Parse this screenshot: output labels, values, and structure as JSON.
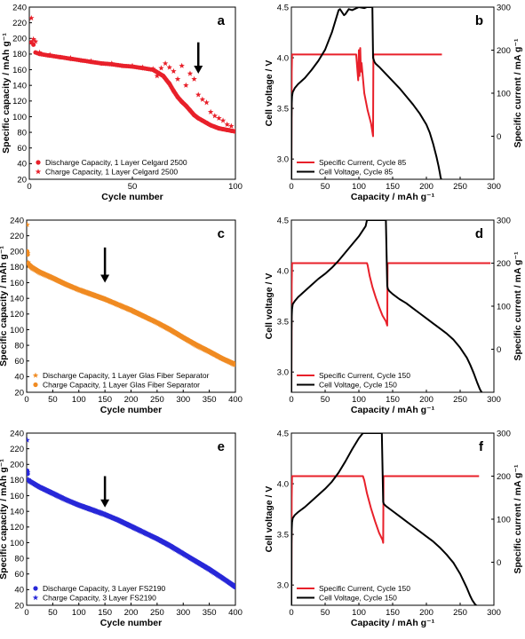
{
  "chart_data": [
    {
      "panel": "a",
      "type": "scatter",
      "xlabel": "Cycle number",
      "ylabel": "Specific capacity / mAh g⁻¹",
      "xlim": [
        0,
        100
      ],
      "ylim": [
        20,
        240
      ],
      "xticks": [
        0,
        50,
        100
      ],
      "yticks": [
        20,
        40,
        60,
        80,
        100,
        120,
        140,
        160,
        180,
        200,
        220,
        240
      ],
      "colors": {
        "discharge": "#e8202a",
        "charge": "#e8202a"
      },
      "legend_position": "bottom-left",
      "series": [
        {
          "name": "Discharge Capacity, 1 Layer Celgard 2500",
          "marker": "circle",
          "x": [
            1,
            2,
            3,
            4,
            5,
            10,
            15,
            20,
            25,
            30,
            35,
            40,
            45,
            50,
            55,
            60,
            65,
            68,
            70,
            72,
            74,
            76,
            78,
            80,
            82,
            84,
            86,
            88,
            90,
            92,
            94,
            96,
            98,
            100
          ],
          "y": [
            195,
            192,
            182,
            181,
            180,
            178,
            176,
            174,
            172,
            170,
            168,
            167,
            165,
            164,
            162,
            160,
            152,
            142,
            133,
            125,
            119,
            114,
            108,
            102,
            98,
            95,
            92,
            89,
            87,
            85,
            84,
            83,
            82,
            81
          ]
        },
        {
          "name": "Charge Capacity, 1 Layer Celgard 2500",
          "marker": "star",
          "x": [
            1,
            2,
            3,
            5,
            10,
            20,
            30,
            40,
            50,
            55,
            60,
            62,
            64,
            66,
            68,
            70,
            72,
            74,
            76,
            78,
            80,
            82,
            84,
            86,
            88,
            90,
            92,
            94,
            96,
            98,
            100
          ],
          "y": [
            226,
            199,
            196,
            182,
            179,
            175,
            171,
            168,
            165,
            163,
            161,
            152,
            162,
            168,
            163,
            158,
            148,
            165,
            140,
            155,
            148,
            128,
            122,
            118,
            106,
            101,
            98,
            95,
            90,
            88,
            82
          ]
        }
      ]
    },
    {
      "panel": "b",
      "type": "line",
      "xlabel": "Capacity / mAh g⁻¹",
      "ylabel": "Cell voltage / V",
      "y2label": "Specific current / mA g⁻¹",
      "xlim": [
        0,
        300
      ],
      "ylim": [
        2.8,
        4.5
      ],
      "y2lim": [
        -100,
        300
      ],
      "xticks": [
        0,
        50,
        100,
        150,
        200,
        250,
        300
      ],
      "yticks": [
        3.0,
        3.5,
        4.0,
        4.5
      ],
      "y2ticks": [
        0,
        100,
        200,
        300
      ],
      "legend_position": "bottom-left",
      "series": [
        {
          "name": "Specific Current, Cycle 85",
          "axis": "right",
          "color": "#e8202a",
          "x": [
            0,
            0.5,
            1,
            20,
            60,
            96,
            98,
            99,
            100,
            101,
            102,
            103,
            104,
            108,
            113,
            118,
            120,
            121,
            121.5,
            125,
            200,
            223
          ],
          "y": [
            -100,
            150,
            190,
            190,
            190,
            190,
            150,
            130,
            200,
            140,
            205,
            150,
            170,
            100,
            60,
            30,
            10,
            0,
            190,
            190,
            190,
            190
          ]
        },
        {
          "name": "Cell Voltage, Cycle 85",
          "axis": "left",
          "color": "#000000",
          "x": [
            0,
            0.2,
            0.5,
            1,
            2,
            5,
            10,
            20,
            30,
            40,
            50,
            60,
            70,
            72,
            75,
            78,
            80,
            85,
            90,
            100,
            108,
            112,
            116,
            120,
            121,
            122,
            123,
            125,
            130,
            140,
            150,
            160,
            170,
            180,
            190,
            200,
            205,
            210,
            215,
            218,
            220,
            221,
            222
          ],
          "y": [
            2.8,
            3.4,
            3.55,
            3.62,
            3.66,
            3.7,
            3.74,
            3.8,
            3.88,
            3.97,
            4.08,
            4.25,
            4.47,
            4.48,
            4.45,
            4.42,
            4.43,
            4.48,
            4.47,
            4.5,
            4.49,
            4.5,
            4.5,
            4.5,
            4.0,
            3.98,
            3.96,
            3.94,
            3.91,
            3.84,
            3.77,
            3.7,
            3.62,
            3.54,
            3.45,
            3.34,
            3.26,
            3.15,
            3.02,
            2.93,
            2.86,
            2.82,
            2.8
          ]
        }
      ]
    },
    {
      "panel": "c",
      "type": "scatter",
      "xlabel": "Cycle number",
      "ylabel": "Specific capacity / mAh g⁻¹",
      "xlim": [
        0,
        400
      ],
      "ylim": [
        20,
        240
      ],
      "xticks": [
        0,
        50,
        100,
        150,
        200,
        250,
        300,
        350,
        400
      ],
      "yticks": [
        20,
        40,
        60,
        80,
        100,
        120,
        140,
        160,
        180,
        200,
        220,
        240
      ],
      "colors": {
        "discharge": "#f08b22",
        "charge": "#f08b22"
      },
      "legend_position": "bottom-left",
      "series": [
        {
          "name": "Discharge Capacity, 1 Layer Glas Fiber Separator",
          "marker": "star",
          "x": [
            1,
            2,
            3,
            5,
            10,
            25,
            50,
            75,
            100,
            125,
            150,
            175,
            200,
            225,
            250,
            275,
            300,
            325,
            350,
            375,
            400
          ],
          "y": [
            234,
            198,
            186,
            182,
            179,
            173,
            166,
            158,
            151,
            145,
            139,
            132,
            125,
            117,
            109,
            100,
            90,
            80,
            72,
            63,
            55
          ]
        },
        {
          "name": "Charge Capacity, 1 Layer Glas Fiber Separator",
          "marker": "circle",
          "x": [
            1,
            2,
            3,
            5,
            10,
            25,
            50,
            75,
            100,
            125,
            150,
            175,
            200,
            225,
            250,
            275,
            300,
            325,
            350,
            375,
            400
          ],
          "y": [
            200,
            196,
            185,
            183,
            180,
            174,
            166,
            158,
            151,
            145,
            139,
            132,
            125,
            117,
            109,
            100,
            90,
            81,
            72,
            63,
            56
          ]
        }
      ]
    },
    {
      "panel": "d",
      "type": "line",
      "xlabel": "Capacity / mAh g⁻¹",
      "ylabel": "Cell voltage / V",
      "y2label": "Specific current / mA g⁻¹",
      "xlim": [
        0,
        300
      ],
      "ylim": [
        2.8,
        4.5
      ],
      "y2lim": [
        -100,
        300
      ],
      "xticks": [
        0,
        50,
        100,
        150,
        200,
        250,
        300
      ],
      "yticks": [
        3.0,
        3.5,
        4.0,
        4.5
      ],
      "y2ticks": [
        0,
        100,
        200,
        300
      ],
      "legend_position": "bottom-left",
      "series": [
        {
          "name": "Specific Current, Cycle 150",
          "axis": "right",
          "color": "#e8202a",
          "x": [
            0,
            0.5,
            1,
            50,
            100,
            112,
            113,
            116,
            120,
            125,
            130,
            135,
            140,
            142,
            142.5,
            145,
            200,
            250,
            295
          ],
          "y": [
            -100,
            150,
            200,
            200,
            200,
            200,
            195,
            170,
            145,
            120,
            98,
            78,
            65,
            55,
            200,
            200,
            200,
            200,
            200
          ]
        },
        {
          "name": "Cell Voltage, Cycle 150",
          "axis": "left",
          "color": "#000000",
          "x": [
            0,
            0.2,
            0.5,
            1,
            2,
            5,
            10,
            20,
            30,
            40,
            50,
            60,
            70,
            80,
            90,
            100,
            110,
            112,
            125,
            140,
            142,
            143,
            145,
            150,
            160,
            170,
            180,
            190,
            200,
            210,
            220,
            230,
            240,
            250,
            260,
            265,
            270,
            275,
            278,
            280,
            282
          ],
          "y": [
            2.8,
            3.4,
            3.55,
            3.62,
            3.67,
            3.7,
            3.74,
            3.8,
            3.86,
            3.92,
            3.97,
            4.03,
            4.1,
            4.18,
            4.26,
            4.34,
            4.44,
            4.5,
            4.5,
            4.5,
            3.85,
            3.82,
            3.8,
            3.77,
            3.72,
            3.68,
            3.63,
            3.58,
            3.53,
            3.48,
            3.43,
            3.38,
            3.32,
            3.24,
            3.14,
            3.07,
            2.99,
            2.9,
            2.85,
            2.82,
            2.8
          ]
        }
      ]
    },
    {
      "panel": "e",
      "type": "scatter",
      "xlabel": "Cycle number",
      "ylabel": "Specific capacity / mAh g⁻¹",
      "xlim": [
        0,
        400
      ],
      "ylim": [
        20,
        240
      ],
      "xticks": [
        0,
        50,
        100,
        150,
        200,
        250,
        300,
        350,
        400
      ],
      "yticks": [
        20,
        40,
        60,
        80,
        100,
        120,
        140,
        160,
        180,
        200,
        220,
        240
      ],
      "colors": {
        "discharge": "#2828d8",
        "charge": "#2828d8"
      },
      "legend_position": "bottom-left",
      "series": [
        {
          "name": "Discharge Capacity, 3 Layer FS2190",
          "marker": "circle",
          "x": [
            1,
            2,
            3,
            5,
            10,
            25,
            50,
            75,
            100,
            125,
            150,
            175,
            200,
            225,
            250,
            275,
            300,
            325,
            350,
            375,
            400
          ],
          "y": [
            192,
            188,
            180,
            179,
            177,
            171,
            163,
            155,
            148,
            142,
            136,
            129,
            121,
            113,
            105,
            96,
            86,
            76,
            66,
            55,
            43
          ]
        },
        {
          "name": "Charge Capacity, 3 Layer FS2190",
          "marker": "star",
          "x": [
            1,
            2,
            3,
            5,
            10,
            25,
            50,
            75,
            100,
            125,
            150,
            175,
            200,
            225,
            250,
            275,
            300,
            325,
            350,
            375,
            400
          ],
          "y": [
            231,
            190,
            181,
            179,
            177,
            171,
            163,
            155,
            148,
            142,
            136,
            129,
            121,
            113,
            105,
            96,
            86,
            76,
            66,
            55,
            44
          ]
        }
      ]
    },
    {
      "panel": "f",
      "type": "line",
      "xlabel": "Capacity / mAh g⁻¹",
      "ylabel": "Cell voltage / V",
      "y2label": "Specific current / mA g⁻¹",
      "xlim": [
        0,
        300
      ],
      "ylim": [
        2.8,
        4.5
      ],
      "y2lim": [
        -100,
        300
      ],
      "xticks": [
        0,
        50,
        100,
        150,
        200,
        250,
        300
      ],
      "yticks": [
        3.0,
        3.5,
        4.0,
        4.5
      ],
      "y2ticks": [
        0,
        100,
        200,
        300
      ],
      "legend_position": "bottom-left",
      "series": [
        {
          "name": "Specific Current, Cycle 150",
          "axis": "right",
          "color": "#e8202a",
          "x": [
            0,
            0.5,
            1,
            50,
            100,
            106,
            108,
            112,
            118,
            124,
            130,
            135,
            136,
            136.5,
            140,
            200,
            250,
            278
          ],
          "y": [
            -100,
            150,
            200,
            200,
            200,
            200,
            190,
            160,
            125,
            95,
            68,
            52,
            45,
            200,
            200,
            200,
            200,
            200
          ]
        },
        {
          "name": "Cell Voltage, Cycle 150",
          "axis": "left",
          "color": "#000000",
          "x": [
            0,
            0.2,
            0.5,
            1,
            2,
            5,
            10,
            20,
            30,
            40,
            50,
            60,
            70,
            80,
            90,
            100,
            106,
            120,
            134,
            136,
            137,
            140,
            150,
            160,
            170,
            180,
            190,
            200,
            210,
            220,
            230,
            240,
            250,
            255,
            260,
            265,
            268,
            270,
            272,
            274
          ],
          "y": [
            2.8,
            3.4,
            3.55,
            3.62,
            3.66,
            3.69,
            3.72,
            3.77,
            3.83,
            3.89,
            3.95,
            4.02,
            4.11,
            4.22,
            4.34,
            4.45,
            4.5,
            4.5,
            4.5,
            3.82,
            3.8,
            3.78,
            3.73,
            3.68,
            3.63,
            3.58,
            3.53,
            3.48,
            3.43,
            3.37,
            3.3,
            3.22,
            3.11,
            3.04,
            2.97,
            2.89,
            2.85,
            2.83,
            2.81,
            2.8
          ]
        }
      ]
    }
  ]
}
